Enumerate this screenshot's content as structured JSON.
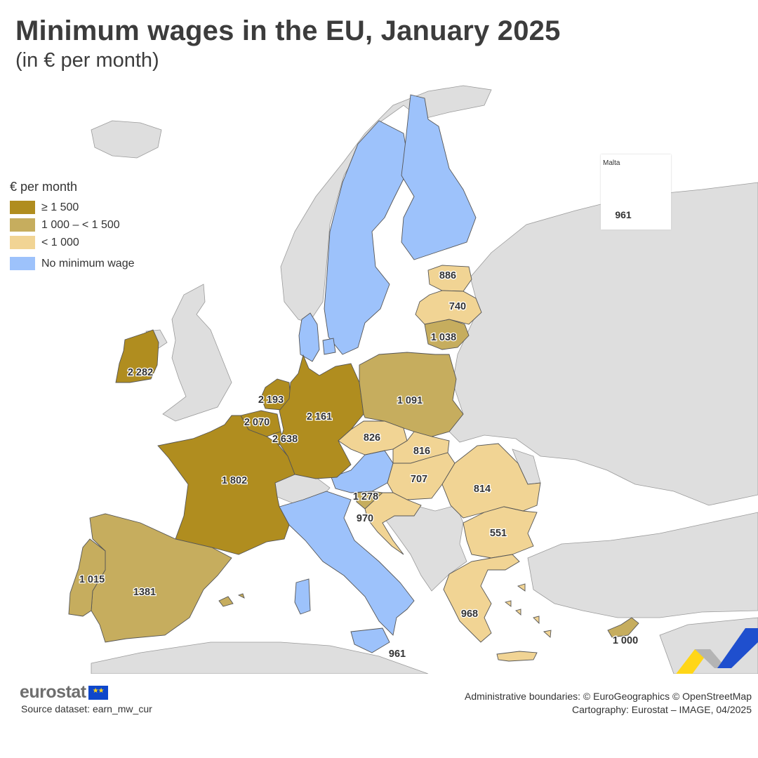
{
  "title": "Minimum wages in the EU, January 2025",
  "subtitle": "(in € per month)",
  "legend": {
    "title": "€ per month",
    "items": [
      {
        "label": "≥ 1 500",
        "color": "#b08d1f"
      },
      {
        "label": "1 000 – < 1 500",
        "color": "#c6ad5e"
      },
      {
        "label": "< 1 000",
        "color": "#f1d494"
      },
      {
        "label": "No minimum wage",
        "color": "#9dc2fb"
      }
    ]
  },
  "colors": {
    "background_countries": "#dedede",
    "border": "#555555"
  },
  "countries": [
    {
      "name": "Ireland",
      "value": "2 282",
      "class": "high"
    },
    {
      "name": "Netherlands",
      "value": "2 193",
      "class": "high"
    },
    {
      "name": "Belgium",
      "value": "2 070",
      "class": "high"
    },
    {
      "name": "Luxembourg",
      "value": "2 638",
      "class": "high"
    },
    {
      "name": "Germany",
      "value": "2 161",
      "class": "high"
    },
    {
      "name": "France",
      "value": "1 802",
      "class": "high"
    },
    {
      "name": "Spain",
      "value": "1381",
      "class": "mid"
    },
    {
      "name": "Portugal",
      "value": "1 015",
      "class": "mid"
    },
    {
      "name": "Poland",
      "value": "1 091",
      "class": "mid"
    },
    {
      "name": "Lithuania",
      "value": "1 038",
      "class": "mid"
    },
    {
      "name": "Slovenia",
      "value": "1 278",
      "class": "mid"
    },
    {
      "name": "Cyprus",
      "value": "1 000",
      "class": "mid"
    },
    {
      "name": "Estonia",
      "value": "886",
      "class": "low"
    },
    {
      "name": "Latvia",
      "value": "740",
      "class": "low"
    },
    {
      "name": "Czechia",
      "value": "826",
      "class": "low"
    },
    {
      "name": "Slovakia",
      "value": "816",
      "class": "low"
    },
    {
      "name": "Hungary",
      "value": "707",
      "class": "low"
    },
    {
      "name": "Romania",
      "value": "814",
      "class": "low"
    },
    {
      "name": "Bulgaria",
      "value": "551",
      "class": "low"
    },
    {
      "name": "Croatia",
      "value": "970",
      "class": "low"
    },
    {
      "name": "Greece",
      "value": "968",
      "class": "low"
    },
    {
      "name": "Malta",
      "value": "961",
      "class": "low"
    },
    {
      "name": "Sweden",
      "class": "none"
    },
    {
      "name": "Finland",
      "class": "none"
    },
    {
      "name": "Denmark",
      "class": "none"
    },
    {
      "name": "Austria",
      "class": "none"
    },
    {
      "name": "Italy",
      "class": "none"
    }
  ],
  "labels": {
    "ireland": "2 282",
    "netherlands": "2 193",
    "belgium": "2 070",
    "luxembourg": "2 638",
    "germany": "2 161",
    "france": "1 802",
    "spain": "1381",
    "portugal": "1 015",
    "poland": "1 091",
    "lithuania": "1 038",
    "slovenia": "1 278",
    "cyprus": "1 000",
    "estonia": "886",
    "latvia": "740",
    "czechia": "826",
    "slovakia": "816",
    "hungary": "707",
    "romania": "814",
    "bulgaria": "551",
    "croatia": "970",
    "greece": "968",
    "sicily_malta": "961"
  },
  "inset": {
    "name": "Malta",
    "value": "961"
  },
  "footer": {
    "logo": "eurostat",
    "source": "Source dataset: earn_mw_cur",
    "boundaries": "Administrative boundaries: © EuroGeographics © OpenStreetMap",
    "cartography": "Cartography: Eurostat – IMAGE, 04/2025"
  }
}
